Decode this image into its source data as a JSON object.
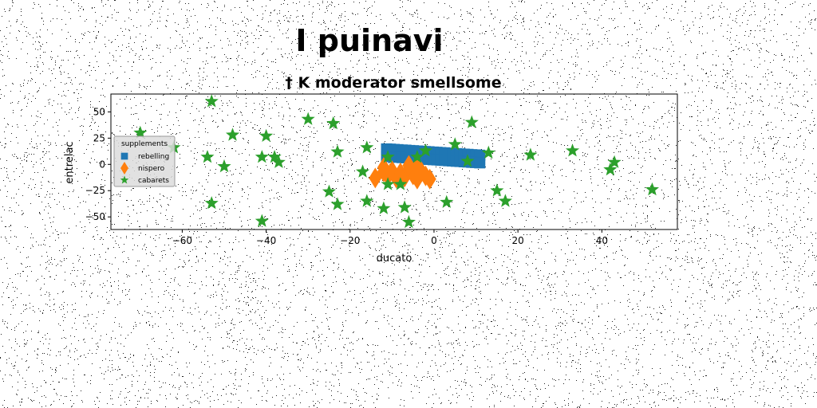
{
  "chart_data": {
    "type": "scatter",
    "suptitle": "I puinavi",
    "title": "† K moderator smellsome",
    "xlabel": "ducato",
    "ylabel": "entrelac",
    "xlim": [
      -77,
      58
    ],
    "ylim": [
      -62,
      67
    ],
    "xticks": [
      -60,
      -40,
      -20,
      0,
      20,
      40
    ],
    "yticks": [
      50,
      25,
      0,
      -25,
      -50
    ],
    "xtick_labels": [
      "−60",
      "−40",
      "−20",
      "0",
      "20",
      "40"
    ],
    "ytick_labels": [
      "50",
      "25",
      "0",
      "−25",
      "−50"
    ],
    "grid": false,
    "legend": {
      "title": "supplements",
      "location": "center-left",
      "entries": [
        "rebelling",
        "nispero",
        "cabarets"
      ]
    },
    "series": [
      {
        "name": "rebelling",
        "marker": "square",
        "color": "#1f77b4",
        "points": [
          [
            -11.3,
            14.7
          ],
          [
            -10.4,
            14.5
          ],
          [
            -9.5,
            14.2
          ],
          [
            -8.6,
            14.0
          ],
          [
            -7.6,
            13.7
          ],
          [
            -6.7,
            13.5
          ],
          [
            -5.8,
            13.2
          ],
          [
            -4.9,
            13.0
          ],
          [
            -3.9,
            12.7
          ],
          [
            -3.0,
            12.5
          ],
          [
            -2.1,
            12.2
          ],
          [
            -1.2,
            12.0
          ],
          [
            -0.2,
            11.7
          ],
          [
            0.7,
            11.5
          ],
          [
            1.6,
            11.2
          ],
          [
            2.5,
            11.0
          ],
          [
            3.5,
            10.7
          ],
          [
            4.4,
            10.5
          ],
          [
            5.3,
            10.2
          ],
          [
            6.2,
            10.0
          ],
          [
            7.2,
            9.7
          ],
          [
            8.1,
            9.5
          ],
          [
            9.0,
            9.2
          ],
          [
            9.9,
            9.0
          ],
          [
            10.9,
            8.7
          ],
          [
            -11.3,
            7.5
          ],
          [
            -10.4,
            7.3
          ],
          [
            -9.5,
            7.0
          ],
          [
            -8.6,
            6.8
          ],
          [
            -7.6,
            6.5
          ],
          [
            -6.7,
            6.3
          ],
          [
            -5.8,
            6.0
          ],
          [
            -4.9,
            5.8
          ],
          [
            -3.9,
            5.5
          ],
          [
            -3.0,
            5.3
          ],
          [
            -2.1,
            5.0
          ],
          [
            -1.2,
            4.8
          ],
          [
            -0.2,
            4.5
          ],
          [
            0.7,
            4.3
          ],
          [
            1.6,
            4.0
          ],
          [
            2.5,
            3.8
          ],
          [
            3.5,
            3.5
          ],
          [
            4.4,
            3.3
          ],
          [
            5.3,
            3.0
          ],
          [
            6.2,
            2.8
          ],
          [
            7.2,
            2.5
          ],
          [
            8.1,
            2.3
          ],
          [
            9.0,
            2.0
          ],
          [
            9.9,
            1.8
          ],
          [
            10.9,
            1.5
          ]
        ]
      },
      {
        "name": "nispero",
        "marker": "diamond",
        "color": "#ff7f0e",
        "points": [
          [
            -14,
            -13
          ],
          [
            -12,
            -7
          ],
          [
            -11,
            -11
          ],
          [
            -10,
            -6
          ],
          [
            -9,
            -13
          ],
          [
            -8,
            -8
          ],
          [
            -7,
            -12
          ],
          [
            -6,
            -5
          ],
          [
            -5,
            -10
          ],
          [
            -4,
            -14
          ],
          [
            -3,
            -7
          ],
          [
            -2,
            -11
          ],
          [
            -1,
            -14
          ],
          [
            -12,
            -3
          ],
          [
            -6,
            -1
          ],
          [
            -4,
            -3
          ]
        ]
      },
      {
        "name": "cabarets",
        "marker": "star",
        "color": "#2ca02c",
        "points": [
          [
            -53,
            60
          ],
          [
            -70,
            30
          ],
          [
            -62,
            16
          ],
          [
            -54,
            7
          ],
          [
            -50,
            -2
          ],
          [
            -48,
            28
          ],
          [
            -53,
            -37
          ],
          [
            -41,
            7
          ],
          [
            -40,
            27
          ],
          [
            -38,
            7
          ],
          [
            -37,
            2
          ],
          [
            -41,
            -54
          ],
          [
            -30,
            43
          ],
          [
            -25,
            -26
          ],
          [
            -24,
            39
          ],
          [
            -23,
            -38
          ],
          [
            -23,
            12
          ],
          [
            -16,
            16
          ],
          [
            -17,
            -7
          ],
          [
            -16,
            -35
          ],
          [
            -12,
            -42
          ],
          [
            -11,
            -19
          ],
          [
            -11,
            7
          ],
          [
            -8,
            -19
          ],
          [
            -7,
            -41
          ],
          [
            -6,
            -55
          ],
          [
            -4,
            7
          ],
          [
            -2,
            13
          ],
          [
            3,
            -36
          ],
          [
            5,
            19
          ],
          [
            8,
            3
          ],
          [
            9,
            40
          ],
          [
            13,
            11
          ],
          [
            15,
            -25
          ],
          [
            17,
            -35
          ],
          [
            23,
            9
          ],
          [
            33,
            13
          ],
          [
            42,
            -5
          ],
          [
            43,
            2
          ],
          [
            52,
            -24
          ]
        ]
      }
    ]
  }
}
